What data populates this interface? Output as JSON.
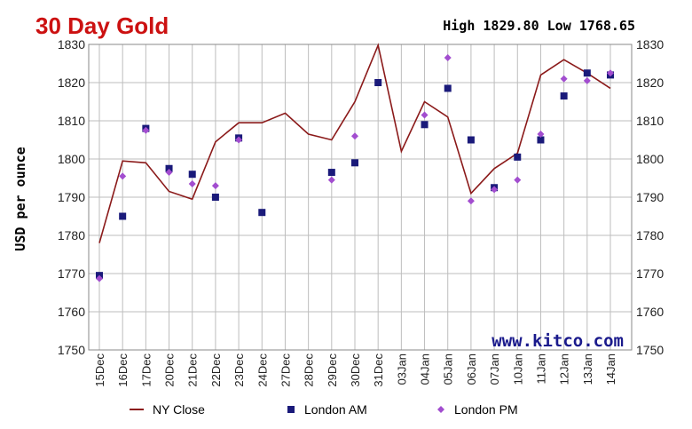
{
  "chart_data": {
    "type": "line",
    "title": "30 Day Gold",
    "subtitle": "High 1829.80 Low 1768.65",
    "ylabel": "USD per ounce",
    "xlabel": "",
    "watermark": "www.kitco.com",
    "ylim": [
      1750,
      1830
    ],
    "yticks": [
      1750,
      1760,
      1770,
      1780,
      1790,
      1800,
      1810,
      1820,
      1830
    ],
    "grid": true,
    "legend_position": "bottom",
    "categories": [
      "15Dec",
      "16Dec",
      "17Dec",
      "20Dec",
      "21Dec",
      "22Dec",
      "23Dec",
      "24Dec",
      "27Dec",
      "28Dec",
      "29Dec",
      "30Dec",
      "31Dec",
      "03Jan",
      "04Jan",
      "05Jan",
      "06Jan",
      "07Jan",
      "10Jan",
      "11Jan",
      "12Jan",
      "13Jan",
      "14Jan"
    ],
    "series": [
      {
        "name": "NY Close",
        "kind": "line",
        "color": "#8b1a1a",
        "values": [
          1778,
          1799.5,
          1799,
          1791.5,
          1789.5,
          1804.5,
          1809.5,
          1809.5,
          1812,
          1806.5,
          1805,
          1815,
          1829.8,
          1802,
          1815,
          1811,
          1791,
          1797.5,
          1801.5,
          1822,
          1826,
          1822.5,
          1818.5
        ]
      },
      {
        "name": "London AM",
        "kind": "marker",
        "color": "#1a1a7a",
        "values": [
          1769.5,
          1785,
          1808,
          1797.5,
          1796,
          1790,
          1805.5,
          1786,
          null,
          null,
          1796.5,
          1799,
          1820,
          null,
          1809,
          1818.5,
          1805,
          1792.5,
          1800.5,
          1805,
          1816.5,
          1822.5,
          1822
        ]
      },
      {
        "name": "London PM",
        "kind": "marker",
        "color": "#a24dcf",
        "values": [
          1768.7,
          1795.5,
          1807.5,
          1796.5,
          1793.5,
          1793,
          1805,
          null,
          null,
          null,
          1794.5,
          1806,
          null,
          null,
          1811.5,
          1826.5,
          1789,
          1792,
          1794.5,
          1806.5,
          1821,
          1820.5,
          1822.5
        ]
      }
    ]
  },
  "colors": {
    "title": "#cc1111",
    "grid": "#bdbdbd",
    "plot_border": "#888888",
    "watermark": "#1a1a8c"
  }
}
